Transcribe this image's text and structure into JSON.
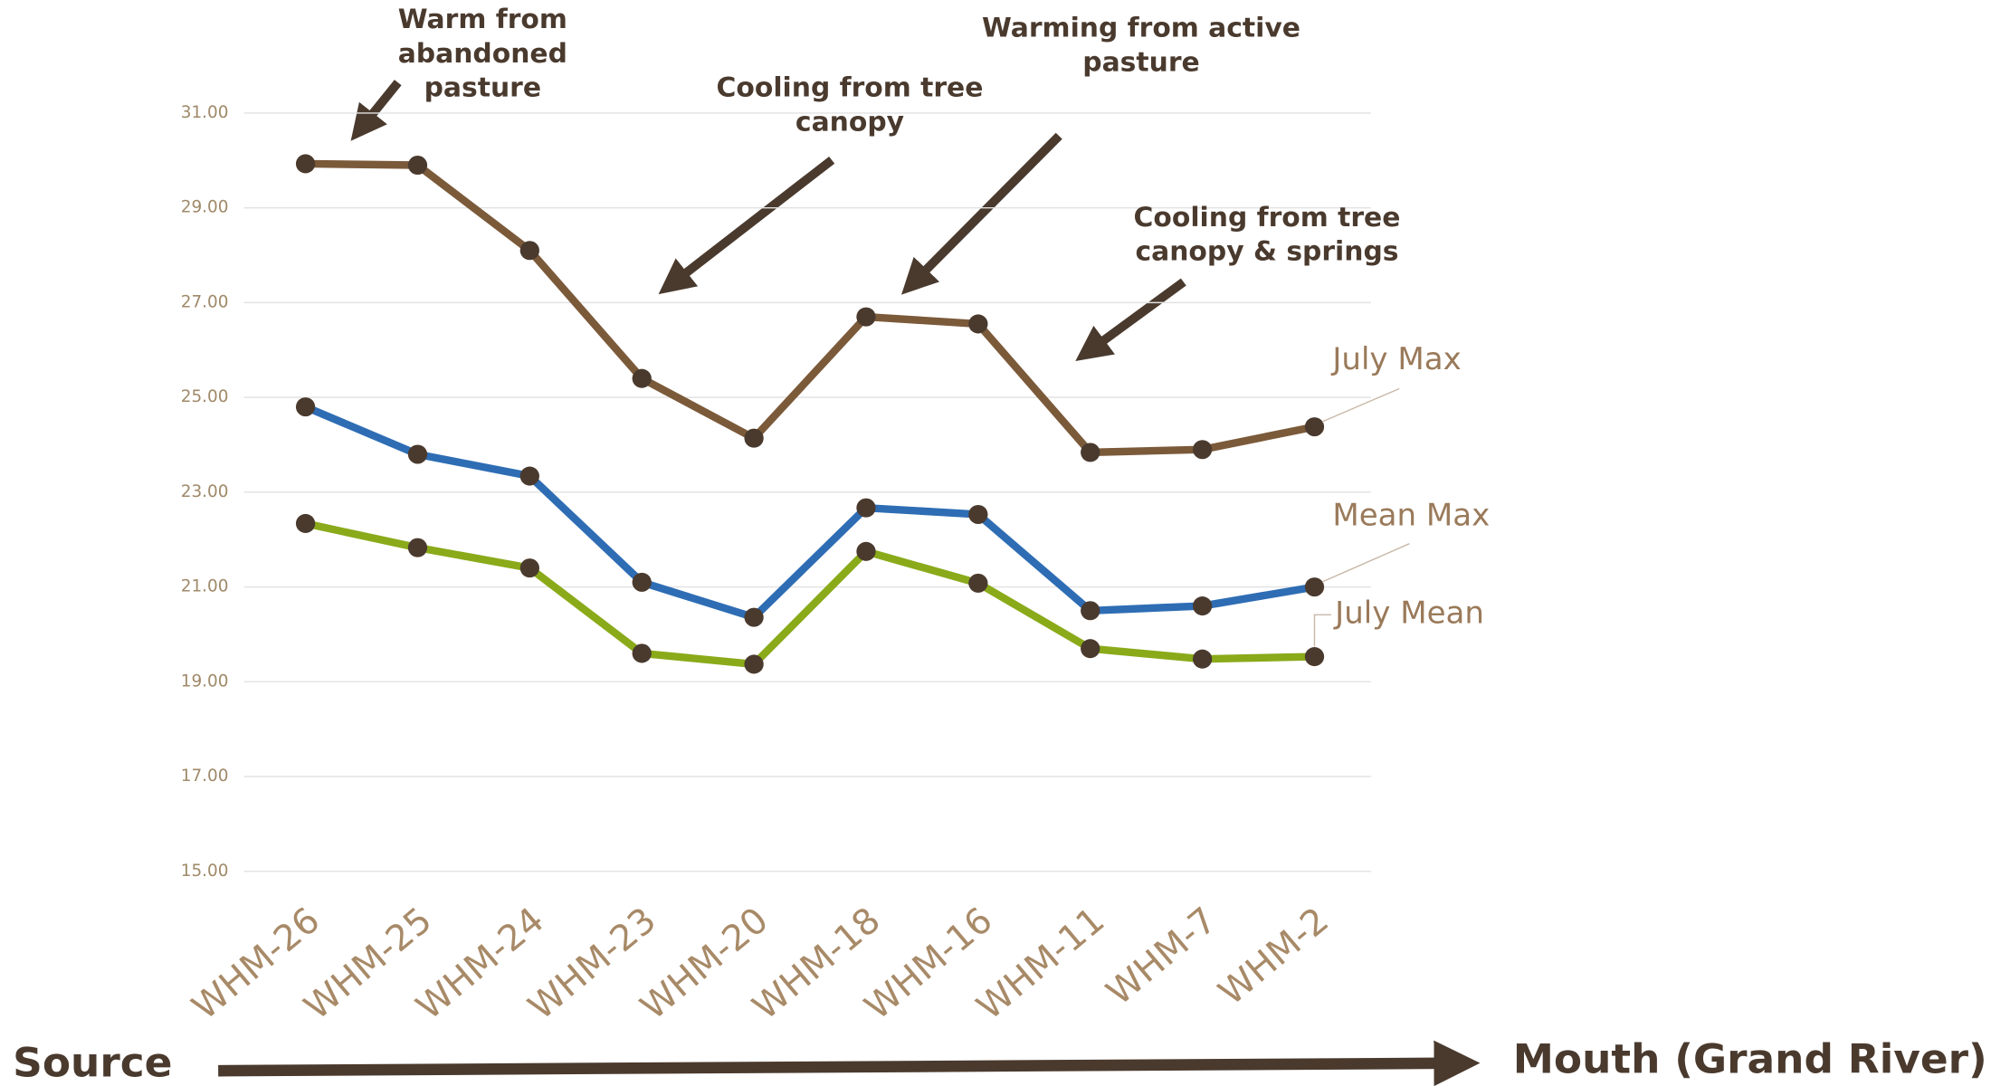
{
  "chart_data": {
    "type": "line",
    "categories": [
      "WHM-26",
      "WHM-25",
      "WHM-24",
      "WHM-23",
      "WHM-20",
      "WHM-18",
      "WHM-16",
      "WHM-11",
      "WHM-7",
      "WHM-2"
    ],
    "series": [
      {
        "name": "July Max",
        "color": "#7b5a3a",
        "values": [
          29.93,
          29.9,
          28.1,
          25.4,
          24.14,
          26.7,
          26.55,
          23.84,
          23.9,
          24.38
        ]
      },
      {
        "name": "Mean Max",
        "color": "#2e6db4",
        "values": [
          24.8,
          23.8,
          23.34,
          21.1,
          20.36,
          22.67,
          22.53,
          20.5,
          20.6,
          21.0
        ]
      },
      {
        "name": "July Mean",
        "color": "#8aaa1a",
        "values": [
          22.34,
          21.83,
          21.4,
          19.6,
          19.37,
          21.75,
          21.08,
          19.7,
          19.48,
          19.53
        ]
      }
    ],
    "marker_color": "#4a3a2e",
    "ylim": [
      15,
      31
    ],
    "yticks": [
      {
        "value": 15,
        "label": "15.00"
      },
      {
        "value": 17,
        "label": "17.00"
      },
      {
        "value": 19,
        "label": "19.00"
      },
      {
        "value": 21,
        "label": "21.00"
      },
      {
        "value": 23,
        "label": "23.00"
      },
      {
        "value": 25,
        "label": "25.00"
      },
      {
        "value": 27,
        "label": "27.00"
      },
      {
        "value": 29,
        "label": "29.00"
      },
      {
        "value": 31,
        "label": "31.00"
      }
    ],
    "grid": true,
    "annotations": [
      {
        "lines": [
          "Warm from",
          "abandoned",
          "pasture"
        ]
      },
      {
        "lines": [
          "Cooling from tree",
          "canopy"
        ]
      },
      {
        "lines": [
          "Warming from active",
          "pasture"
        ]
      },
      {
        "lines": [
          "Cooling from tree",
          "canopy & springs"
        ]
      }
    ],
    "x_start_label": "Source",
    "x_end_label": "Mouth (Grand River)"
  }
}
